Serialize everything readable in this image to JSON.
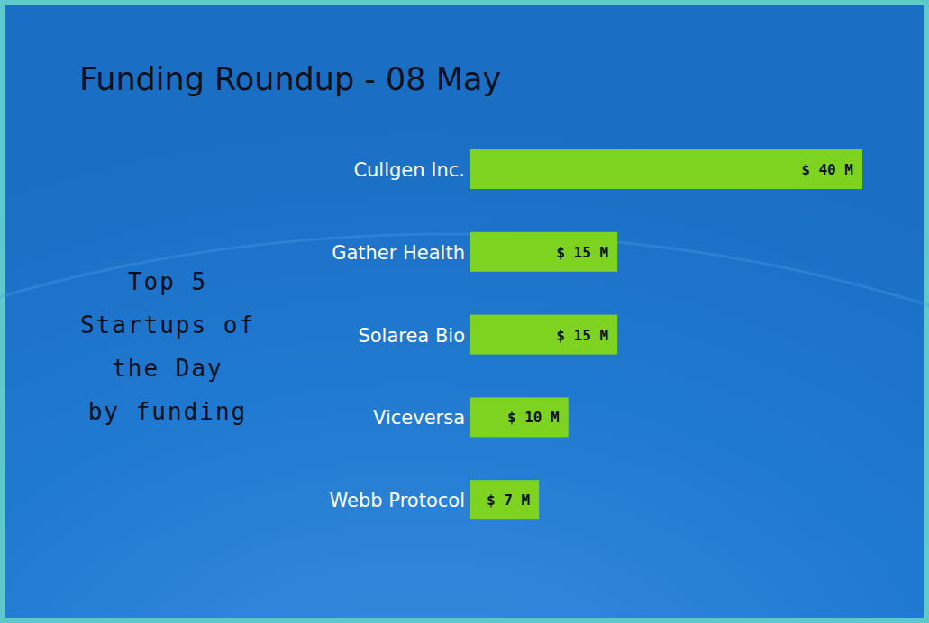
{
  "chart_data": {
    "type": "bar",
    "orientation": "horizontal",
    "title": "Funding Roundup - 08 May",
    "annotations": [
      "Top 5",
      "Startups of",
      "the Day",
      "by funding"
    ],
    "categories": [
      "Cullgen Inc.",
      "Gather Health",
      "Solarea Bio",
      "Viceversa",
      "Webb Protocol"
    ],
    "values": [
      40,
      15,
      15,
      10,
      7
    ],
    "value_labels": [
      "$ 40 M",
      "$ 15 M",
      "$ 15 M",
      "$ 10 M",
      "$ 7 M"
    ],
    "color": "#7ed321",
    "xlim": [
      0,
      40
    ],
    "data_labels": true,
    "tick_labels": false,
    "grid": false
  }
}
